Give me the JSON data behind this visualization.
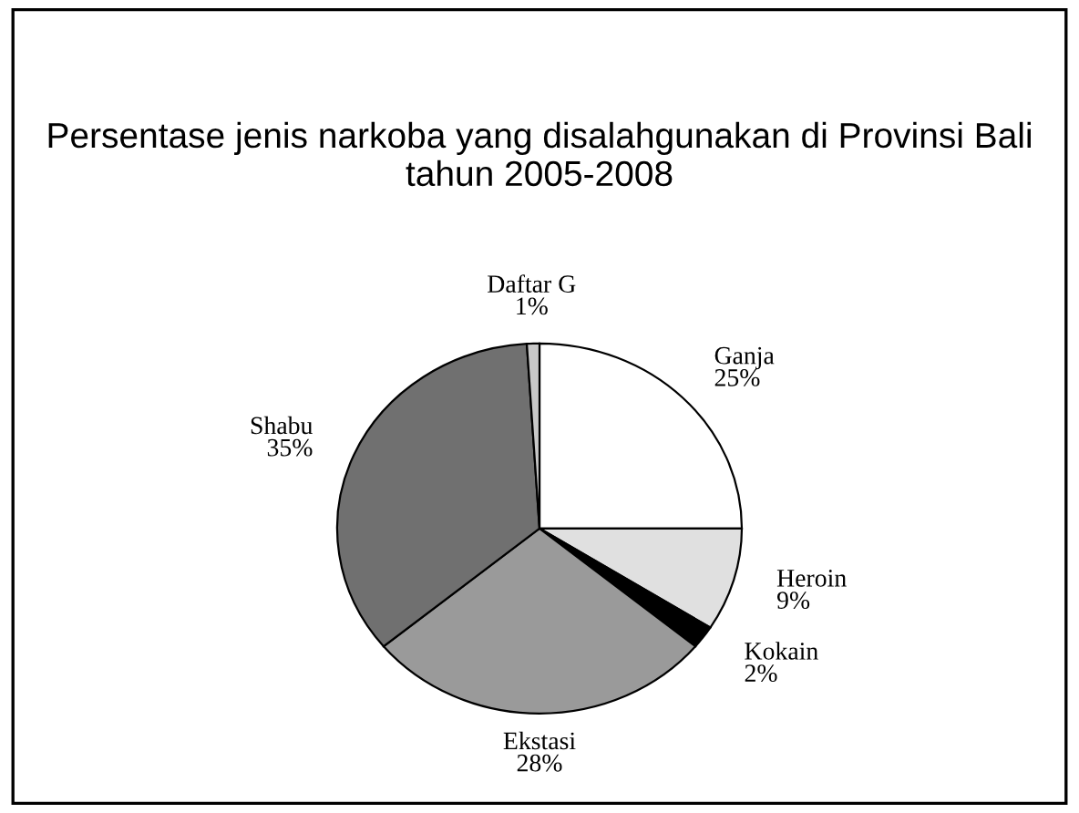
{
  "chart_data": {
    "type": "pie",
    "title": "Persentase jenis narkoba yang disalahgunakan di Provinsi Bali tahun 2005-2008",
    "categories": [
      "Ganja",
      "Heroin",
      "Kokain",
      "Ekstasi",
      "Shabu",
      "Daftar G"
    ],
    "values": [
      25,
      9,
      2,
      28,
      35,
      1
    ],
    "value_labels": [
      "25%",
      "9%",
      "2%",
      "28%",
      "35%",
      "1%"
    ],
    "colors": [
      "#ffffff",
      "#e0e0e0",
      "#000000",
      "#9a9a9a",
      "#707070",
      "#c8c8c8"
    ],
    "legend": false
  }
}
